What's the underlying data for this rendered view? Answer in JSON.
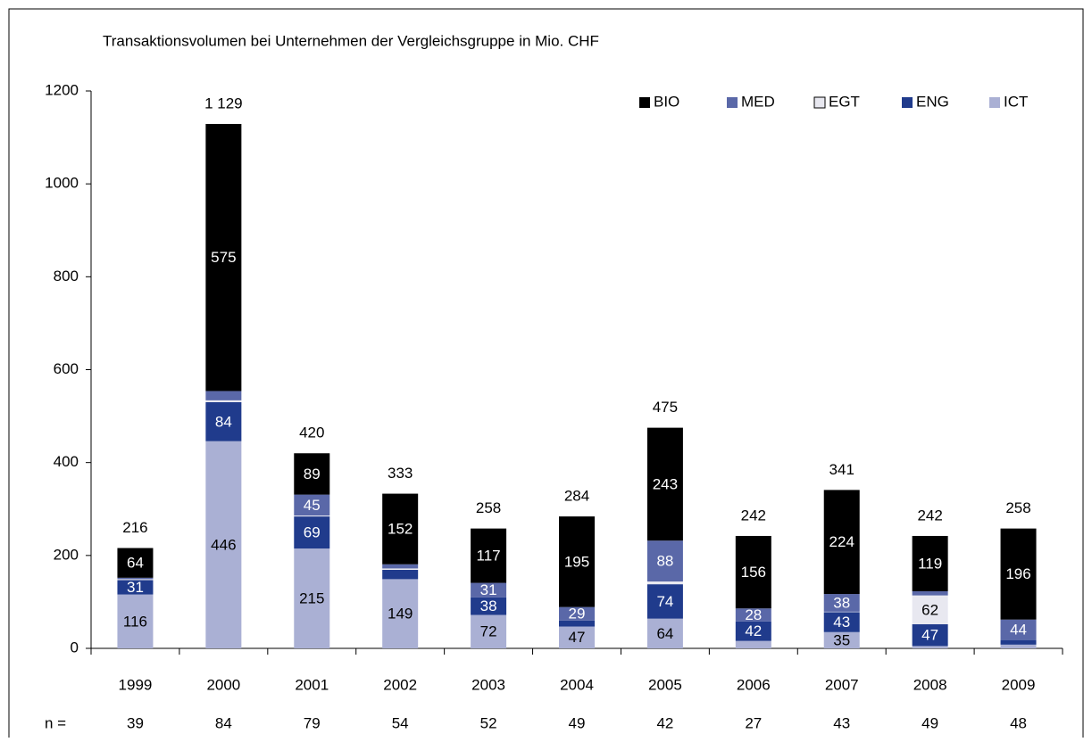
{
  "chart_data": {
    "type": "stacked_bar",
    "title": "Transaktionsvolumen bei Unternehmen der Vergleichsgruppe in Mio. CHF",
    "categories": [
      "1999",
      "2000",
      "2001",
      "2002",
      "2003",
      "2004",
      "2005",
      "2006",
      "2007",
      "2008",
      "2009"
    ],
    "series": [
      {
        "name": "ICT",
        "color": "#aab0d4",
        "values": [
          116,
          446,
          215,
          149,
          72,
          47,
          64,
          16,
          35,
          5,
          8
        ],
        "value_labels": [
          "116",
          "446",
          "215",
          "149",
          "72",
          "47",
          "64",
          null,
          "35",
          null,
          null
        ]
      },
      {
        "name": "ENG",
        "color": "#203b8c",
        "values": [
          31,
          84,
          69,
          20,
          38,
          13,
          74,
          42,
          43,
          47,
          10
        ],
        "value_labels": [
          "31",
          "84",
          "69",
          null,
          "38",
          null,
          "74",
          "42",
          "43",
          "47",
          null
        ]
      },
      {
        "name": "EGT",
        "color": "#e8e8f0",
        "values": [
          2,
          4,
          2,
          3,
          0,
          0,
          6,
          0,
          1,
          62,
          0
        ],
        "value_labels": [
          null,
          null,
          null,
          null,
          null,
          null,
          null,
          null,
          null,
          "62",
          null
        ]
      },
      {
        "name": "MED",
        "color": "#5a68a8",
        "values": [
          3,
          20,
          45,
          9,
          31,
          29,
          88,
          28,
          38,
          9,
          44
        ],
        "value_labels": [
          null,
          null,
          "45",
          null,
          "31",
          "29",
          "88",
          "28",
          "38",
          null,
          "44"
        ]
      },
      {
        "name": "BIO",
        "color": "#000000",
        "values": [
          64,
          575,
          89,
          152,
          117,
          195,
          243,
          156,
          224,
          119,
          196
        ],
        "value_labels": [
          "64",
          "575",
          "89",
          "152",
          "117",
          "195",
          "243",
          "156",
          "224",
          "119",
          "196"
        ]
      }
    ],
    "totals": [
      216,
      1129,
      420,
      333,
      258,
      284,
      475,
      242,
      341,
      242,
      258
    ],
    "total_labels": [
      "216",
      "1 129",
      "420",
      "333",
      "258",
      "284",
      "475",
      "242",
      "341",
      "242",
      "258"
    ],
    "n_label": "n =",
    "n_values": [
      "39",
      "84",
      "79",
      "54",
      "52",
      "49",
      "42",
      "27",
      "43",
      "49",
      "48"
    ],
    "ylim": [
      0,
      1200
    ],
    "yticks": [
      0,
      200,
      400,
      600,
      800,
      1000,
      1200
    ],
    "legend": "top-right",
    "legend_order": [
      "BIO",
      "MED",
      "EGT",
      "ENG",
      "ICT"
    ]
  }
}
